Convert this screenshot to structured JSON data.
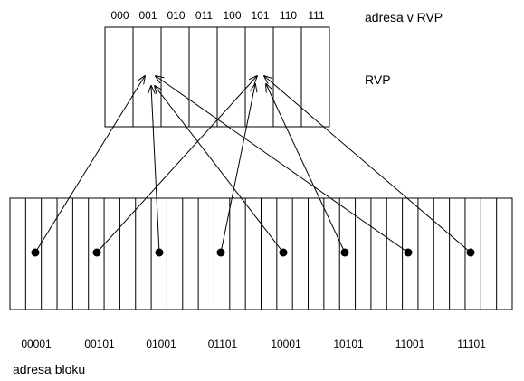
{
  "labels": {
    "cache_address": "adresa v RVP",
    "cache": "RVP",
    "block_address": "adresa bloku"
  },
  "cache_addresses": [
    "000",
    "001",
    "010",
    "011",
    "100",
    "101",
    "110",
    "111"
  ],
  "block_addresses": [
    "00001",
    "00101",
    "01001",
    "01101",
    "10001",
    "10101",
    "11001",
    "11101"
  ],
  "memory": {
    "block_count": 32
  },
  "mappings": [
    {
      "block": "00001",
      "cache": "001"
    },
    {
      "block": "00101",
      "cache": "101"
    },
    {
      "block": "01001",
      "cache": "001"
    },
    {
      "block": "01101",
      "cache": "101"
    },
    {
      "block": "10001",
      "cache": "001"
    },
    {
      "block": "10101",
      "cache": "101"
    },
    {
      "block": "11001",
      "cache": "001"
    },
    {
      "block": "11101",
      "cache": "101"
    }
  ],
  "colors": {
    "stroke": "#000000",
    "background": "#ffffff"
  }
}
